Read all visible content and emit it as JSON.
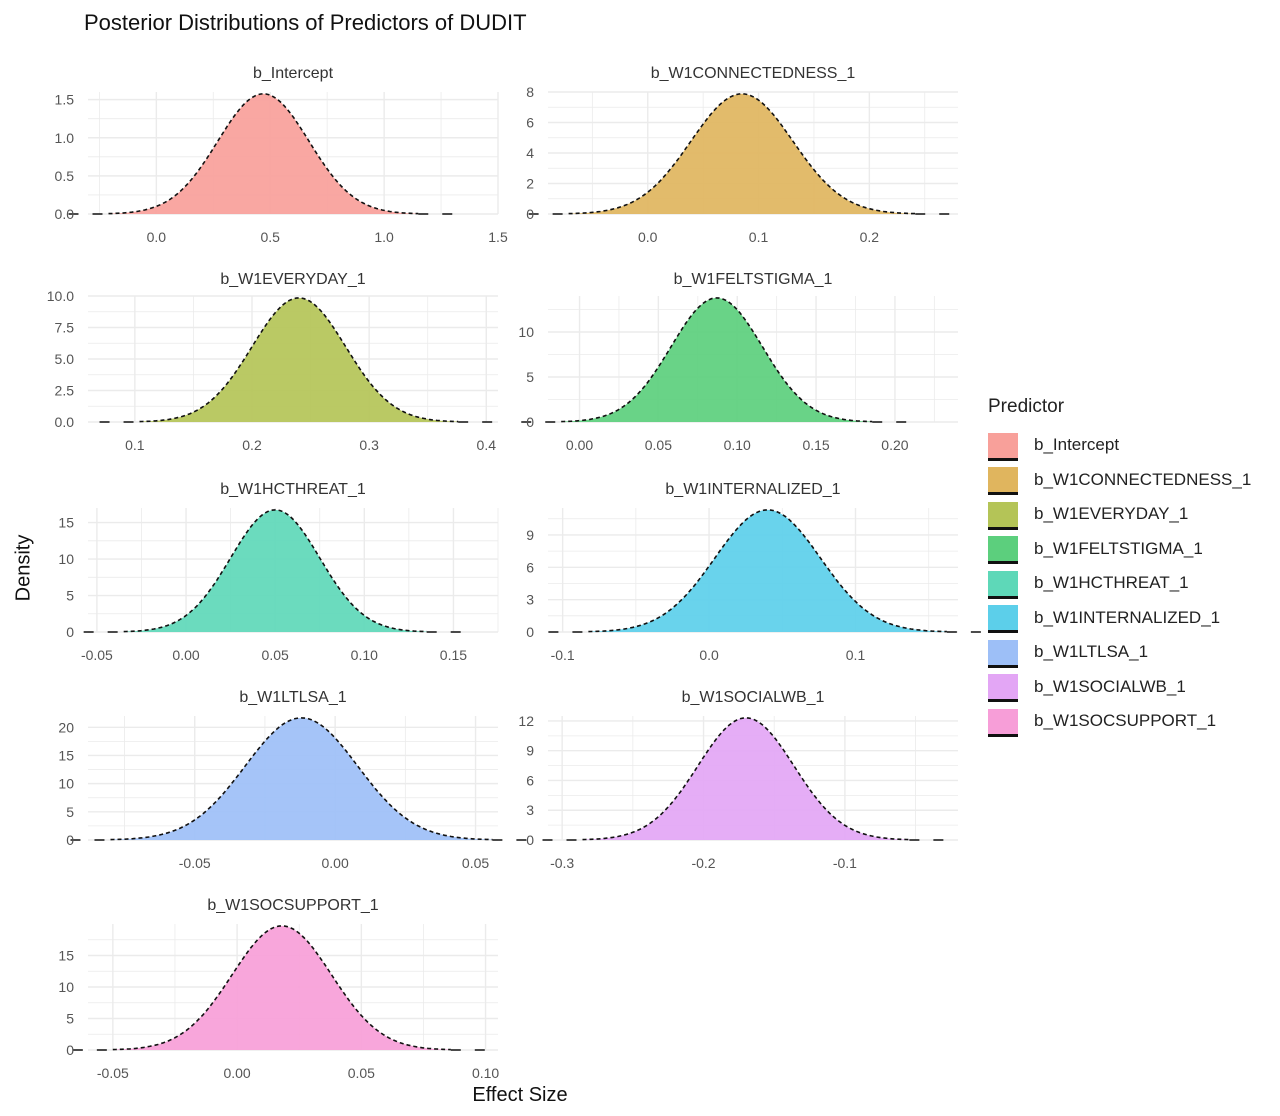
{
  "chart_data": {
    "type": "area",
    "title": "Posterior Distributions of Predictors of DUDIT",
    "xlabel": "Effect Size",
    "ylabel": "Density",
    "legend": {
      "title": "Predictor",
      "position": "right",
      "items": [
        {
          "name": "b_Intercept",
          "color": "#F8A09A"
        },
        {
          "name": "b_W1CONNECTEDNESS_1",
          "color": "#E0B55E"
        },
        {
          "name": "b_W1EVERYDAY_1",
          "color": "#B4C457"
        },
        {
          "name": "b_W1FELTSTIGMA_1",
          "color": "#5CCF7D"
        },
        {
          "name": "b_W1HCTHREAT_1",
          "color": "#5ED8B8"
        },
        {
          "name": "b_W1INTERNALIZED_1",
          "color": "#5CCFEA"
        },
        {
          "name": "b_W1LTLSA_1",
          "color": "#9DBFF7"
        },
        {
          "name": "b_W1SOCIALWB_1",
          "color": "#E3A6F5"
        },
        {
          "name": "b_W1SOCSUPPORT_1",
          "color": "#F79ED8"
        }
      ]
    },
    "grid": true,
    "facets": [
      {
        "name": "b_Intercept",
        "color": "#F8A09A",
        "mean": 0.47,
        "sd": 0.2,
        "xlim": [
          -0.3,
          1.5
        ],
        "ylim": [
          0,
          1.6
        ],
        "xticks": [
          "0.0",
          "0.5",
          "1.0",
          "1.5"
        ],
        "yticks": [
          "0.0",
          "0.5",
          "1.0",
          "1.5"
        ]
      },
      {
        "name": "b_W1CONNECTEDNESS_1",
        "color": "#E0B55E",
        "mean": 0.085,
        "sd": 0.046,
        "xlim": [
          -0.09,
          0.28
        ],
        "ylim": [
          0,
          8
        ],
        "xticks": [
          "0.0",
          "0.1",
          "0.2"
        ],
        "yticks": [
          "0",
          "2",
          "4",
          "6",
          "8"
        ]
      },
      {
        "name": "b_W1EVERYDAY_1",
        "color": "#B4C457",
        "mean": 0.24,
        "sd": 0.04,
        "xlim": [
          0.06,
          0.41
        ],
        "ylim": [
          0,
          10
        ],
        "xticks": [
          "0.1",
          "0.2",
          "0.3",
          "0.4"
        ],
        "yticks": [
          "0.0",
          "2.5",
          "5.0",
          "7.5",
          "10.0"
        ]
      },
      {
        "name": "b_W1FELTSTIGMA_1",
        "color": "#5CCF7D",
        "mean": 0.087,
        "sd": 0.029,
        "xlim": [
          -0.02,
          0.24
        ],
        "ylim": [
          0,
          14
        ],
        "xticks": [
          "0.00",
          "0.05",
          "0.10",
          "0.15",
          "0.20"
        ],
        "yticks": [
          "0",
          "5",
          "10"
        ]
      },
      {
        "name": "b_W1HCTHREAT_1",
        "color": "#5ED8B8",
        "mean": 0.05,
        "sd": 0.025,
        "xlim": [
          -0.055,
          0.175
        ],
        "ylim": [
          0,
          17
        ],
        "xticks": [
          "-0.05",
          "0.00",
          "0.05",
          "0.10",
          "0.15"
        ],
        "yticks": [
          "0",
          "5",
          "10",
          "15"
        ]
      },
      {
        "name": "b_W1INTERNALIZED_1",
        "color": "#5CCFEA",
        "mean": 0.04,
        "sd": 0.036,
        "xlim": [
          -0.11,
          0.17
        ],
        "ylim": [
          0,
          11.5
        ],
        "xticks": [
          "-0.1",
          "0.0",
          "0.1"
        ],
        "yticks": [
          "0",
          "3",
          "6",
          "9"
        ]
      },
      {
        "name": "b_W1LTLSA_1",
        "color": "#9DBFF7",
        "mean": -0.012,
        "sd": 0.02,
        "xlim": [
          -0.088,
          0.058
        ],
        "ylim": [
          0,
          22
        ],
        "xticks": [
          "-0.05",
          "0.00",
          "0.05"
        ],
        "yticks": [
          "0",
          "5",
          "10",
          "15",
          "20"
        ]
      },
      {
        "name": "b_W1SOCIALWB_1",
        "color": "#E3A6F5",
        "mean": -0.17,
        "sd": 0.034,
        "xlim": [
          -0.31,
          -0.02
        ],
        "ylim": [
          0,
          12.5
        ],
        "xticks": [
          "-0.3",
          "-0.2",
          "-0.1"
        ],
        "yticks": [
          "0",
          "3",
          "6",
          "9",
          "12"
        ]
      },
      {
        "name": "b_W1SOCSUPPORT_1",
        "color": "#F79ED8",
        "mean": 0.018,
        "sd": 0.02,
        "xlim": [
          -0.06,
          0.105
        ],
        "ylim": [
          0,
          20
        ],
        "xticks": [
          "-0.05",
          "0.00",
          "0.05",
          "0.10"
        ],
        "yticks": [
          "0",
          "5",
          "10",
          "15"
        ]
      }
    ]
  }
}
